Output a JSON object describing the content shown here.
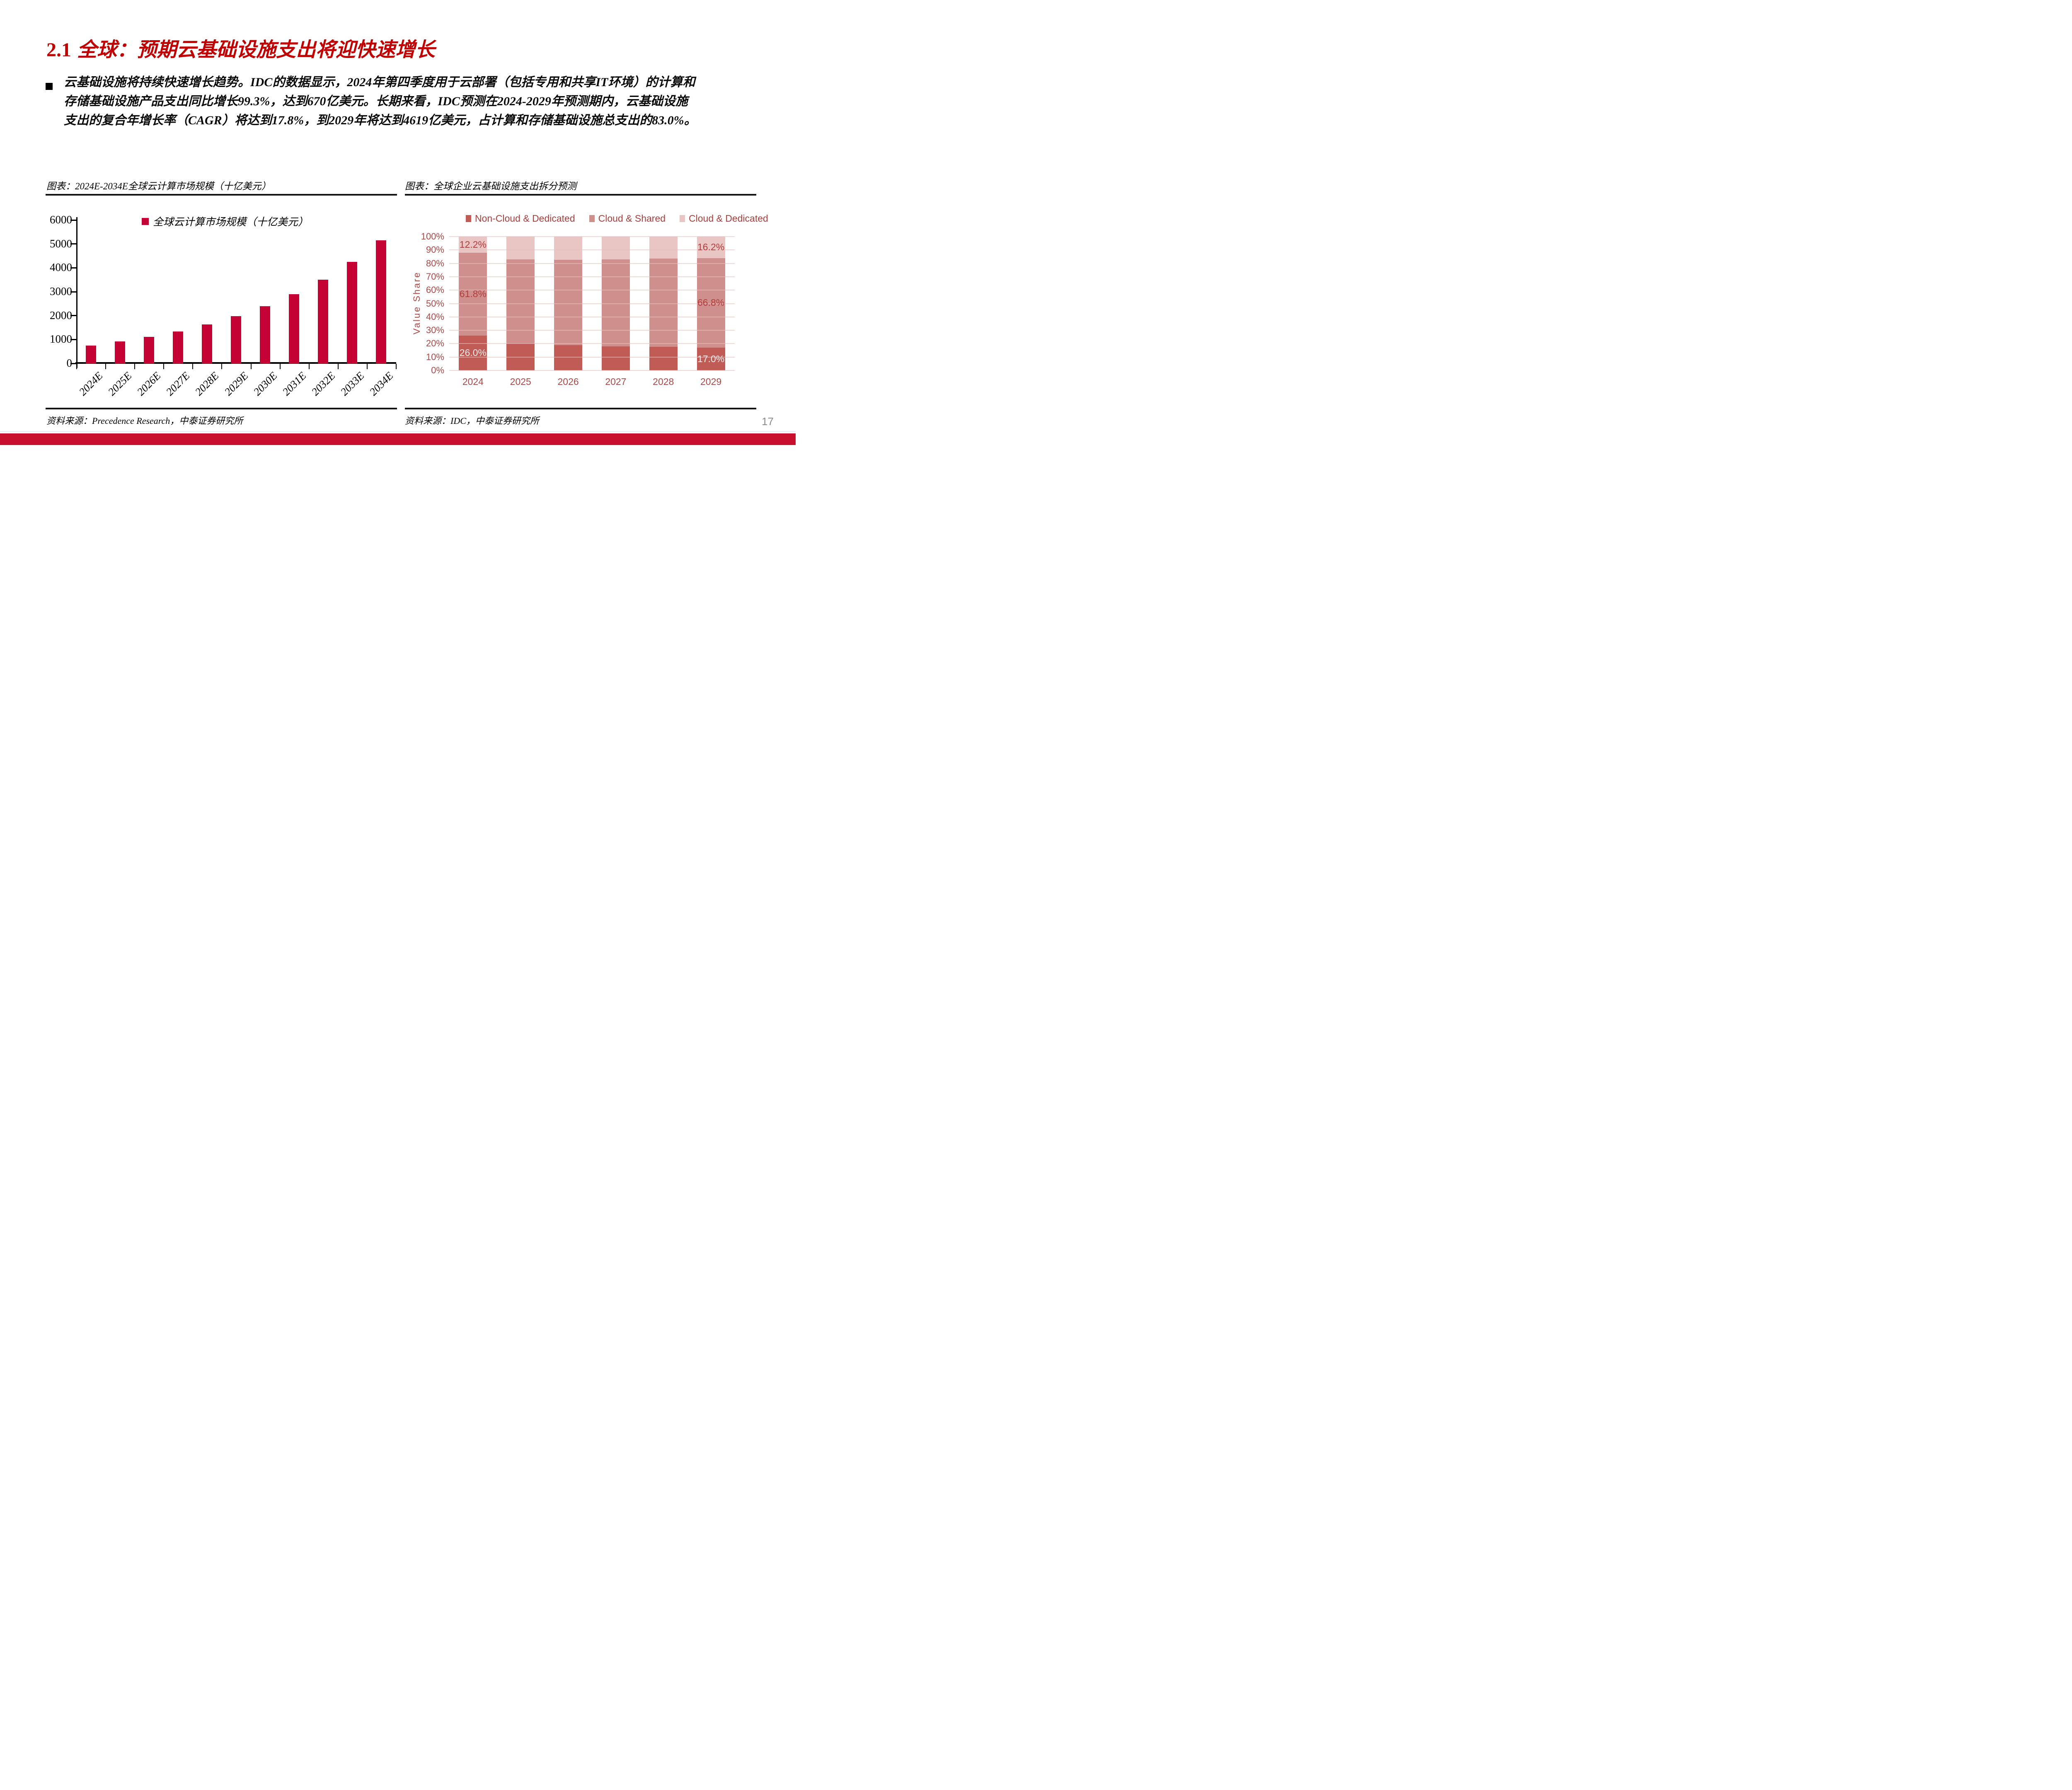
{
  "slide": {
    "title": {
      "number": "2.1",
      "text": "全球：预期云基础设施支出将迎快速增长"
    },
    "body_paragraph_lines": [
      "云基础设施将持续快速增长趋势。IDC的数据显示，2024年第四季度用于云部署（包括专用和共享IT环境）的计算和",
      "存储基础设施产品支出同比增长99.3%，达到670亿美元。长期来看，IDC预测在2024-2029年预测期内，云基础设施",
      "支出的复合年增长率（CAGR）将达到17.8%，到2029年将达到4619亿美元，占计算和存储基础设施总支出的83.0%。"
    ],
    "page_number": "17"
  },
  "figures": {
    "left": {
      "caption": "图表：2024E-2034E全球云计算市场规模（十亿美元）",
      "source": "资料来源：Precedence Research，中泰证券研究所"
    },
    "right": {
      "caption": "图表：全球企业云基础设施支出拆分预测",
      "source": "资料来源：IDC，中泰证券研究所"
    }
  },
  "chart_data": [
    {
      "type": "bar",
      "title": "2024E-2034E全球云计算市场规模（十亿美元）",
      "legend": [
        "全球云计算市场规模（十亿美元）"
      ],
      "legend_position": "top",
      "categories": [
        "2024E",
        "2025E",
        "2026E",
        "2027E",
        "2028E",
        "2029E",
        "2030E",
        "2031E",
        "2032E",
        "2033E",
        "2034E"
      ],
      "values": [
        752,
        913,
        1106,
        1341,
        1625,
        1970,
        2387,
        2893,
        3507,
        4250,
        5151
      ],
      "xlabel": "",
      "ylabel": "",
      "ylim": [
        0,
        6000
      ],
      "ytick_step": 1000,
      "grid": false,
      "bar_color": "#c40233"
    },
    {
      "type": "stacked-bar-100",
      "title": "全球企业云基础设施支出拆分预测",
      "categories": [
        "2024",
        "2025",
        "2026",
        "2027",
        "2028",
        "2029"
      ],
      "series": [
        {
          "name": "Non-Cloud & Dedicated",
          "color": "#c05b55",
          "values": [
            26.0,
            20.0,
            19.0,
            18.0,
            17.5,
            17.0
          ]
        },
        {
          "name": "Cloud & Shared",
          "color": "#cf8f8c",
          "values": [
            61.8,
            63.0,
            63.8,
            65.0,
            66.0,
            66.8
          ]
        },
        {
          "name": "Cloud & Dedicated",
          "color": "#e9c6c4",
          "values": [
            12.2,
            17.0,
            17.2,
            17.0,
            16.5,
            16.2
          ]
        }
      ],
      "data_labels": {
        "2024": [
          "26.0%",
          "61.8%",
          "12.2%"
        ],
        "2029": [
          "17.0%",
          "66.8%",
          "16.2%"
        ]
      },
      "ylabel": "Value Share",
      "ylim": [
        0,
        100
      ],
      "ytick_step": 10,
      "ytick_suffix": "%",
      "grid": true,
      "legend_position": "top"
    }
  ],
  "colors": {
    "title_red": "#c00000",
    "bar_red": "#c40233",
    "footer_red": "#c8102e",
    "grid_pink": "#e7c0be",
    "chart_text_red": "#ab4a47",
    "legend_text_red": "#a93e3c",
    "data_label_dark": "#b23c3b",
    "data_label_light": "#f8efee",
    "page_gray": "#8c8c8c"
  }
}
